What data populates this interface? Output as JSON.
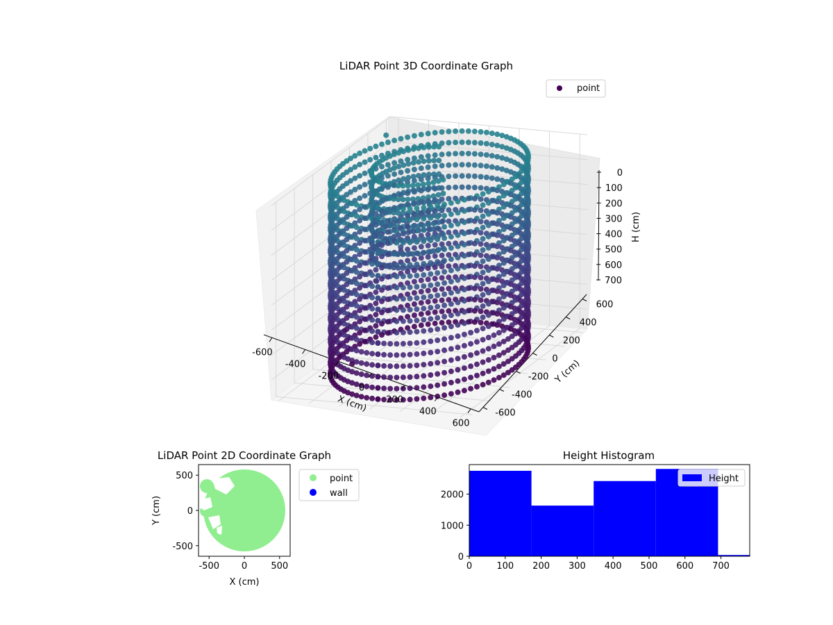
{
  "chart_data": [
    {
      "type": "scatter",
      "projection": "3d",
      "title": "LiDAR Point 3D Coordinate Graph",
      "xlabel": "X (cm)",
      "ylabel": "Y (cm)",
      "zlabel": "H (cm)",
      "xlim": [
        -650,
        650
      ],
      "ylim": [
        -650,
        650
      ],
      "zlim": [
        780,
        0
      ],
      "zaxis_inverted": true,
      "xticks": [
        -600,
        -400,
        -200,
        0,
        200,
        400,
        600
      ],
      "yticks": [
        -600,
        -400,
        -200,
        0,
        200,
        400,
        600
      ],
      "zticks": [
        0,
        100,
        200,
        300,
        400,
        500,
        600,
        700
      ],
      "grid": true,
      "colormap": "viridis",
      "legend": {
        "placement": "top-right",
        "entries": [
          {
            "label": "point",
            "color": "#440154"
          }
        ]
      },
      "series": [
        {
          "name": "point",
          "description_shape": "dense vertical wall of points",
          "outer_wall": {
            "center": [
              0,
              0
            ],
            "radius": 560,
            "start_deg": -90,
            "end_deg": 270,
            "h_range": [
              0,
              780
            ]
          },
          "inner_wall": {
            "center": [
              -80,
              40
            ],
            "radius": 280,
            "start_deg": 100,
            "end_deg": 330,
            "h_range": [
              0,
              380
            ]
          },
          "scattered_points": [
            {
              "x": -590,
              "y": 500,
              "h": 30
            },
            {
              "x": -610,
              "y": 80,
              "h": 700
            },
            {
              "x": -420,
              "y": -150,
              "h": 760
            },
            {
              "x": -300,
              "y": 250,
              "h": 300
            },
            {
              "x": -250,
              "y": 100,
              "h": 350
            },
            {
              "x": -380,
              "y": 50,
              "h": 480
            },
            {
              "x": -200,
              "y": 320,
              "h": 260
            },
            {
              "x": -120,
              "y": 200,
              "h": 200
            }
          ]
        }
      ]
    },
    {
      "type": "scatter",
      "title": "LiDAR Point 2D Coordinate Graph",
      "xlabel": "X (cm)",
      "ylabel": "Y (cm)",
      "xlim": [
        -650,
        650
      ],
      "ylim": [
        -650,
        650
      ],
      "xticks": [
        -500,
        0,
        500
      ],
      "yticks": [
        -500,
        0,
        500
      ],
      "legend": {
        "placement": "right-outside",
        "entries": [
          {
            "label": "point",
            "color": "#90ee90"
          },
          {
            "label": "wall",
            "color": "#0000ff"
          }
        ]
      },
      "series": [
        {
          "name": "point",
          "color": "#90ee90",
          "shape": "disk",
          "center": [
            0,
            0
          ],
          "radius": 580
        }
      ]
    },
    {
      "type": "bar",
      "title": "Height Histogram",
      "xlabel": "",
      "ylabel": "",
      "xlim": [
        0,
        780
      ],
      "ylim": [
        0,
        2950
      ],
      "xticks": [
        0,
        100,
        200,
        300,
        400,
        500,
        600,
        700
      ],
      "yticks": [
        0,
        1000,
        2000
      ],
      "legend": {
        "placement": "top-right",
        "entries": [
          {
            "label": "Height",
            "color": "#0000ff"
          }
        ]
      },
      "series": [
        {
          "name": "Height",
          "color": "#0000ff",
          "bins": [
            0,
            173,
            346,
            519,
            692,
            780
          ],
          "values": [
            2750,
            1630,
            2420,
            2810,
            40
          ]
        }
      ]
    }
  ]
}
